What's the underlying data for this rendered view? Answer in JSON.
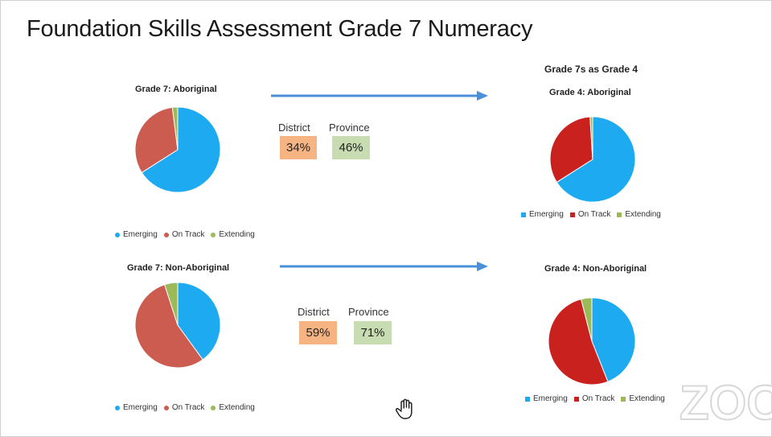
{
  "slide": {
    "title": "Foundation Skills Assessment Grade 7 Numeracy"
  },
  "right_column_heading": "Grade 7s as Grade 4",
  "stats": [
    {
      "district_label": "District",
      "district_value": "34%",
      "province_label": "Province",
      "province_value": "46%"
    },
    {
      "district_label": "District",
      "district_value": "59%",
      "province_label": "Province",
      "province_value": "71%"
    }
  ],
  "colors": {
    "emerging": "#1eaaf1",
    "on_track_grade7": "#cd5c50",
    "on_track_grade4": "#c9211e",
    "extending": "#9bbb59",
    "arrow": "#4a90d9",
    "district_box": "#f6b483",
    "province_box": "#c8dcb1"
  },
  "chart_data": [
    {
      "type": "pie",
      "title": "Grade 7: Aboriginal",
      "categories": [
        "Emerging",
        "On Track",
        "Extending"
      ],
      "values": [
        66,
        32,
        2
      ],
      "legend": "bottom"
    },
    {
      "type": "pie",
      "title": "Grade 4: Aboriginal",
      "categories": [
        "Emerging",
        "On Track",
        "Extending"
      ],
      "values": [
        66,
        33,
        1
      ],
      "legend": "bottom"
    },
    {
      "type": "pie",
      "title": "Grade 7: Non-Aboriginal",
      "categories": [
        "Emerging",
        "On Track",
        "Extending"
      ],
      "values": [
        40,
        55,
        5
      ],
      "legend": "bottom"
    },
    {
      "type": "pie",
      "title": "Grade 4: Non-Aboriginal",
      "categories": [
        "Emerging",
        "On Track",
        "Extending"
      ],
      "values": [
        44,
        52,
        4
      ],
      "legend": "bottom"
    }
  ],
  "icons": {
    "cursor": "hand-cursor-icon",
    "watermark": "zoom-watermark-icon"
  },
  "watermark_text": "ZOOM"
}
